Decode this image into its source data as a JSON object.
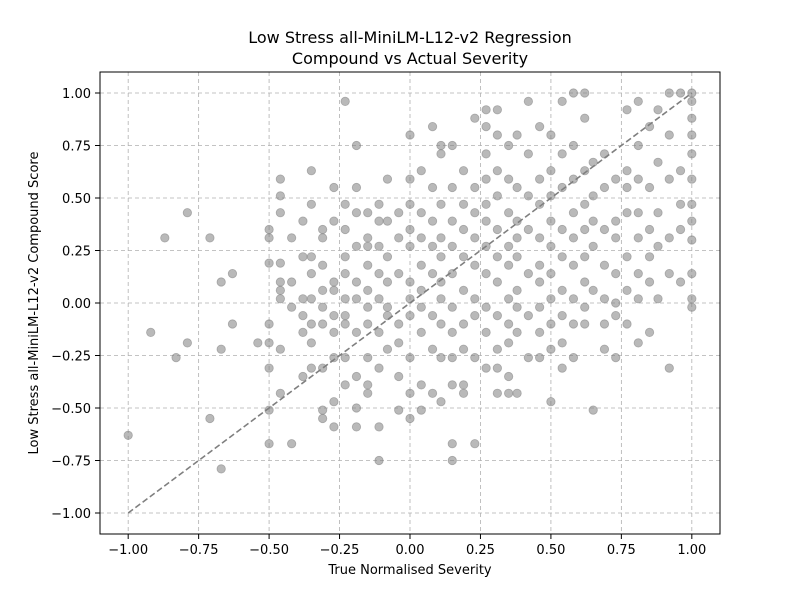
{
  "chart_data": {
    "type": "scatter",
    "title_line1": "Low Stress all-MiniLM-L12-v2 Regression",
    "title_line2": "Compound vs Actual Severity",
    "xlabel": "True Normalised Severity",
    "ylabel": "Low Stress all-MiniLM-L12-v2 Compound Score",
    "xlim": [
      -1.1,
      1.1
    ],
    "ylim": [
      -1.1,
      1.1
    ],
    "grid": true,
    "x_ticks": [
      -1.0,
      -0.75,
      -0.5,
      -0.25,
      0.0,
      0.25,
      0.5,
      0.75,
      1.0
    ],
    "x_tick_labels": [
      "−1.00",
      "−0.75",
      "−0.50",
      "−0.25",
      "0.00",
      "0.25",
      "0.50",
      "0.75",
      "1.00"
    ],
    "y_ticks": [
      -1.0,
      -0.75,
      -0.5,
      -0.25,
      0.0,
      0.25,
      0.5,
      0.75,
      1.0
    ],
    "y_tick_labels": [
      "−1.00",
      "−0.75",
      "−0.50",
      "−0.25",
      "0.00",
      "0.25",
      "0.50",
      "0.75",
      "1.00"
    ],
    "reference_line": {
      "x": [
        -1.0,
        1.0
      ],
      "y": [
        -1.0,
        1.0
      ],
      "style": "dashed",
      "color": "#7f7f7f"
    },
    "point_color": "#808080",
    "points": [
      [
        -1.0,
        -0.63
      ],
      [
        -0.92,
        -0.14
      ],
      [
        -0.87,
        0.31
      ],
      [
        -0.83,
        -0.26
      ],
      [
        -0.79,
        0.43
      ],
      [
        -0.79,
        -0.19
      ],
      [
        -0.71,
        0.31
      ],
      [
        -0.71,
        -0.55
      ],
      [
        -0.67,
        0.1
      ],
      [
        -0.67,
        -0.22
      ],
      [
        -0.67,
        -0.79
      ],
      [
        -0.63,
        0.14
      ],
      [
        -0.63,
        -0.1
      ],
      [
        -0.54,
        -0.19
      ],
      [
        -0.5,
        0.35
      ],
      [
        -0.5,
        0.31
      ],
      [
        -0.5,
        0.19
      ],
      [
        -0.5,
        -0.1
      ],
      [
        -0.5,
        -0.19
      ],
      [
        -0.5,
        -0.31
      ],
      [
        -0.5,
        -0.51
      ],
      [
        -0.5,
        -0.67
      ],
      [
        -0.46,
        0.59
      ],
      [
        -0.46,
        0.51
      ],
      [
        -0.46,
        0.43
      ],
      [
        -0.46,
        0.19
      ],
      [
        -0.46,
        0.1
      ],
      [
        -0.46,
        0.06
      ],
      [
        -0.46,
        0.02
      ],
      [
        -0.46,
        -0.22
      ],
      [
        -0.46,
        -0.43
      ],
      [
        -0.42,
        0.31
      ],
      [
        -0.42,
        0.1
      ],
      [
        -0.42,
        -0.02
      ],
      [
        -0.42,
        -0.67
      ],
      [
        -0.38,
        0.39
      ],
      [
        -0.38,
        0.22
      ],
      [
        -0.38,
        0.02
      ],
      [
        -0.38,
        -0.06
      ],
      [
        -0.38,
        -0.14
      ],
      [
        -0.38,
        -0.35
      ],
      [
        -0.35,
        0.63
      ],
      [
        -0.35,
        0.47
      ],
      [
        -0.35,
        0.22
      ],
      [
        -0.35,
        0.14
      ],
      [
        -0.35,
        0.02
      ],
      [
        -0.35,
        -0.1
      ],
      [
        -0.35,
        -0.19
      ],
      [
        -0.35,
        -0.31
      ],
      [
        -0.31,
        0.35
      ],
      [
        -0.31,
        0.31
      ],
      [
        -0.31,
        0.18
      ],
      [
        -0.31,
        0.06
      ],
      [
        -0.31,
        -0.02
      ],
      [
        -0.31,
        -0.1
      ],
      [
        -0.31,
        -0.31
      ],
      [
        -0.31,
        -0.51
      ],
      [
        -0.31,
        -0.55
      ],
      [
        -0.27,
        0.55
      ],
      [
        -0.27,
        0.39
      ],
      [
        -0.27,
        0.1
      ],
      [
        -0.27,
        0.06
      ],
      [
        -0.27,
        -0.06
      ],
      [
        -0.27,
        -0.14
      ],
      [
        -0.27,
        -0.26
      ],
      [
        -0.27,
        -0.47
      ],
      [
        -0.27,
        -0.59
      ],
      [
        -0.23,
        0.96
      ],
      [
        -0.23,
        0.47
      ],
      [
        -0.23,
        0.35
      ],
      [
        -0.23,
        0.22
      ],
      [
        -0.23,
        0.14
      ],
      [
        -0.23,
        0.02
      ],
      [
        -0.23,
        -0.06
      ],
      [
        -0.23,
        -0.1
      ],
      [
        -0.23,
        -0.26
      ],
      [
        -0.23,
        -0.39
      ],
      [
        -0.19,
        0.75
      ],
      [
        -0.19,
        0.55
      ],
      [
        -0.19,
        0.43
      ],
      [
        -0.19,
        0.27
      ],
      [
        -0.19,
        0.1
      ],
      [
        -0.19,
        0.02
      ],
      [
        -0.19,
        -0.14
      ],
      [
        -0.19,
        -0.35
      ],
      [
        -0.19,
        -0.5
      ],
      [
        -0.19,
        -0.59
      ],
      [
        -0.15,
        0.43
      ],
      [
        -0.15,
        0.31
      ],
      [
        -0.15,
        0.27
      ],
      [
        -0.15,
        0.18
      ],
      [
        -0.15,
        0.06
      ],
      [
        -0.15,
        -0.02
      ],
      [
        -0.15,
        -0.1
      ],
      [
        -0.15,
        -0.26
      ],
      [
        -0.15,
        -0.39
      ],
      [
        -0.15,
        -0.43
      ],
      [
        -0.11,
        0.47
      ],
      [
        -0.11,
        0.39
      ],
      [
        -0.11,
        0.27
      ],
      [
        -0.11,
        0.14
      ],
      [
        -0.11,
        0.02
      ],
      [
        -0.11,
        -0.14
      ],
      [
        -0.11,
        -0.31
      ],
      [
        -0.11,
        -0.59
      ],
      [
        -0.11,
        -0.75
      ],
      [
        -0.08,
        0.59
      ],
      [
        -0.08,
        0.39
      ],
      [
        -0.08,
        0.22
      ],
      [
        -0.08,
        0.1
      ],
      [
        -0.08,
        -0.02
      ],
      [
        -0.08,
        -0.06
      ],
      [
        -0.08,
        -0.22
      ],
      [
        -0.04,
        0.43
      ],
      [
        -0.04,
        0.31
      ],
      [
        -0.04,
        0.14
      ],
      [
        -0.04,
        -0.1
      ],
      [
        -0.04,
        -0.19
      ],
      [
        -0.04,
        -0.35
      ],
      [
        -0.04,
        -0.51
      ],
      [
        0.0,
        0.8
      ],
      [
        0.0,
        0.59
      ],
      [
        0.0,
        0.47
      ],
      [
        0.0,
        0.35
      ],
      [
        0.0,
        0.27
      ],
      [
        0.0,
        0.1
      ],
      [
        0.0,
        0.02
      ],
      [
        0.0,
        -0.06
      ],
      [
        0.0,
        -0.26
      ],
      [
        0.0,
        -0.43
      ],
      [
        0.0,
        -0.55
      ],
      [
        0.04,
        0.63
      ],
      [
        0.04,
        0.43
      ],
      [
        0.04,
        0.31
      ],
      [
        0.04,
        0.18
      ],
      [
        0.04,
        0.06
      ],
      [
        0.04,
        -0.02
      ],
      [
        0.04,
        -0.14
      ],
      [
        0.04,
        -0.39
      ],
      [
        0.04,
        -0.51
      ],
      [
        0.08,
        0.84
      ],
      [
        0.08,
        0.55
      ],
      [
        0.08,
        0.39
      ],
      [
        0.08,
        0.27
      ],
      [
        0.08,
        0.14
      ],
      [
        0.08,
        -0.06
      ],
      [
        0.08,
        -0.22
      ],
      [
        0.08,
        -0.43
      ],
      [
        0.11,
        0.75
      ],
      [
        0.11,
        0.71
      ],
      [
        0.11,
        0.47
      ],
      [
        0.11,
        0.31
      ],
      [
        0.11,
        0.22
      ],
      [
        0.11,
        0.1
      ],
      [
        0.11,
        0.02
      ],
      [
        0.11,
        -0.1
      ],
      [
        0.11,
        -0.26
      ],
      [
        0.11,
        -0.47
      ],
      [
        0.15,
        0.75
      ],
      [
        0.15,
        0.55
      ],
      [
        0.15,
        0.39
      ],
      [
        0.15,
        0.27
      ],
      [
        0.15,
        0.14
      ],
      [
        0.15,
        -0.02
      ],
      [
        0.15,
        -0.14
      ],
      [
        0.15,
        -0.26
      ],
      [
        0.15,
        -0.39
      ],
      [
        0.15,
        -0.67
      ],
      [
        0.15,
        -0.75
      ],
      [
        0.19,
        0.63
      ],
      [
        0.19,
        0.47
      ],
      [
        0.19,
        0.35
      ],
      [
        0.19,
        0.22
      ],
      [
        0.19,
        0.06
      ],
      [
        0.19,
        -0.1
      ],
      [
        0.19,
        -0.22
      ],
      [
        0.19,
        -0.39
      ],
      [
        0.19,
        -0.43
      ],
      [
        0.23,
        0.88
      ],
      [
        0.23,
        0.55
      ],
      [
        0.23,
        0.43
      ],
      [
        0.23,
        0.31
      ],
      [
        0.23,
        0.18
      ],
      [
        0.23,
        0.02
      ],
      [
        0.23,
        -0.06
      ],
      [
        0.23,
        -0.26
      ],
      [
        0.23,
        -0.67
      ],
      [
        0.27,
        0.92
      ],
      [
        0.27,
        0.84
      ],
      [
        0.27,
        0.71
      ],
      [
        0.27,
        0.59
      ],
      [
        0.27,
        0.47
      ],
      [
        0.27,
        0.39
      ],
      [
        0.27,
        0.27
      ],
      [
        0.27,
        0.14
      ],
      [
        0.27,
        -0.02
      ],
      [
        0.27,
        -0.14
      ],
      [
        0.27,
        -0.31
      ],
      [
        0.31,
        0.92
      ],
      [
        0.31,
        0.8
      ],
      [
        0.31,
        0.63
      ],
      [
        0.31,
        0.51
      ],
      [
        0.31,
        0.35
      ],
      [
        0.31,
        0.22
      ],
      [
        0.31,
        0.1
      ],
      [
        0.31,
        -0.06
      ],
      [
        0.31,
        -0.22
      ],
      [
        0.31,
        -0.31
      ],
      [
        0.31,
        -0.43
      ],
      [
        0.35,
        0.75
      ],
      [
        0.35,
        0.59
      ],
      [
        0.35,
        0.43
      ],
      [
        0.35,
        0.27
      ],
      [
        0.35,
        0.18
      ],
      [
        0.35,
        0.02
      ],
      [
        0.35,
        -0.1
      ],
      [
        0.35,
        -0.19
      ],
      [
        0.35,
        -0.35
      ],
      [
        0.35,
        -0.43
      ],
      [
        0.38,
        0.8
      ],
      [
        0.38,
        0.55
      ],
      [
        0.38,
        0.39
      ],
      [
        0.38,
        0.31
      ],
      [
        0.38,
        0.22
      ],
      [
        0.38,
        0.06
      ],
      [
        0.38,
        -0.02
      ],
      [
        0.38,
        -0.14
      ],
      [
        0.38,
        -0.43
      ],
      [
        0.42,
        0.96
      ],
      [
        0.42,
        0.71
      ],
      [
        0.42,
        0.51
      ],
      [
        0.42,
        0.35
      ],
      [
        0.42,
        0.14
      ],
      [
        0.42,
        -0.06
      ],
      [
        0.42,
        -0.26
      ],
      [
        0.46,
        0.84
      ],
      [
        0.46,
        0.59
      ],
      [
        0.46,
        0.47
      ],
      [
        0.46,
        0.31
      ],
      [
        0.46,
        0.18
      ],
      [
        0.46,
        0.1
      ],
      [
        0.46,
        -0.02
      ],
      [
        0.46,
        -0.14
      ],
      [
        0.46,
        -0.26
      ],
      [
        0.5,
        0.8
      ],
      [
        0.5,
        0.63
      ],
      [
        0.5,
        0.51
      ],
      [
        0.5,
        0.39
      ],
      [
        0.5,
        0.27
      ],
      [
        0.5,
        0.14
      ],
      [
        0.5,
        0.02
      ],
      [
        0.5,
        -0.1
      ],
      [
        0.5,
        -0.22
      ],
      [
        0.5,
        -0.47
      ],
      [
        0.54,
        0.96
      ],
      [
        0.54,
        0.71
      ],
      [
        0.54,
        0.55
      ],
      [
        0.54,
        0.35
      ],
      [
        0.54,
        0.22
      ],
      [
        0.54,
        0.06
      ],
      [
        0.54,
        -0.06
      ],
      [
        0.54,
        -0.19
      ],
      [
        0.54,
        -0.31
      ],
      [
        0.58,
        1.0
      ],
      [
        0.58,
        0.75
      ],
      [
        0.58,
        0.59
      ],
      [
        0.58,
        0.43
      ],
      [
        0.58,
        0.31
      ],
      [
        0.58,
        0.18
      ],
      [
        0.58,
        0.02
      ],
      [
        0.58,
        -0.1
      ],
      [
        0.58,
        -0.26
      ],
      [
        0.62,
        1.0
      ],
      [
        0.62,
        0.88
      ],
      [
        0.62,
        0.63
      ],
      [
        0.62,
        0.47
      ],
      [
        0.62,
        0.35
      ],
      [
        0.62,
        0.22
      ],
      [
        0.62,
        0.1
      ],
      [
        0.62,
        -0.02
      ],
      [
        0.62,
        -0.1
      ],
      [
        0.65,
        0.67
      ],
      [
        0.65,
        0.51
      ],
      [
        0.65,
        0.39
      ],
      [
        0.65,
        0.27
      ],
      [
        0.65,
        0.06
      ],
      [
        0.65,
        -0.51
      ],
      [
        0.69,
        0.71
      ],
      [
        0.69,
        0.55
      ],
      [
        0.69,
        0.35
      ],
      [
        0.69,
        0.18
      ],
      [
        0.69,
        0.02
      ],
      [
        0.69,
        -0.1
      ],
      [
        0.69,
        -0.22
      ],
      [
        0.73,
        0.59
      ],
      [
        0.73,
        0.39
      ],
      [
        0.73,
        0.31
      ],
      [
        0.73,
        0.14
      ],
      [
        0.73,
        0.0
      ],
      [
        0.73,
        -0.06
      ],
      [
        0.73,
        -0.26
      ],
      [
        0.77,
        0.92
      ],
      [
        0.77,
        0.63
      ],
      [
        0.77,
        0.55
      ],
      [
        0.77,
        0.43
      ],
      [
        0.77,
        0.22
      ],
      [
        0.77,
        0.06
      ],
      [
        0.77,
        -0.1
      ],
      [
        0.81,
        0.96
      ],
      [
        0.81,
        0.75
      ],
      [
        0.81,
        0.59
      ],
      [
        0.81,
        0.43
      ],
      [
        0.81,
        0.31
      ],
      [
        0.81,
        0.14
      ],
      [
        0.81,
        0.02
      ],
      [
        0.81,
        -0.19
      ],
      [
        0.85,
        0.84
      ],
      [
        0.85,
        0.55
      ],
      [
        0.85,
        0.35
      ],
      [
        0.85,
        0.22
      ],
      [
        0.85,
        0.1
      ],
      [
        0.85,
        -0.14
      ],
      [
        0.88,
        0.92
      ],
      [
        0.88,
        0.67
      ],
      [
        0.88,
        0.43
      ],
      [
        0.88,
        0.27
      ],
      [
        0.88,
        0.02
      ],
      [
        0.92,
        1.0
      ],
      [
        0.92,
        0.8
      ],
      [
        0.92,
        0.59
      ],
      [
        0.92,
        0.31
      ],
      [
        0.92,
        0.14
      ],
      [
        0.92,
        -0.31
      ],
      [
        0.96,
        1.0
      ],
      [
        0.96,
        0.63
      ],
      [
        0.96,
        0.47
      ],
      [
        0.96,
        0.35
      ],
      [
        0.96,
        0.1
      ],
      [
        1.0,
        1.0
      ],
      [
        1.0,
        0.96
      ],
      [
        1.0,
        0.88
      ],
      [
        1.0,
        0.8
      ],
      [
        1.0,
        0.71
      ],
      [
        1.0,
        0.59
      ],
      [
        1.0,
        0.47
      ],
      [
        1.0,
        0.39
      ],
      [
        1.0,
        0.3
      ],
      [
        1.0,
        0.14
      ],
      [
        1.0,
        0.02
      ],
      [
        1.0,
        -0.02
      ]
    ]
  }
}
